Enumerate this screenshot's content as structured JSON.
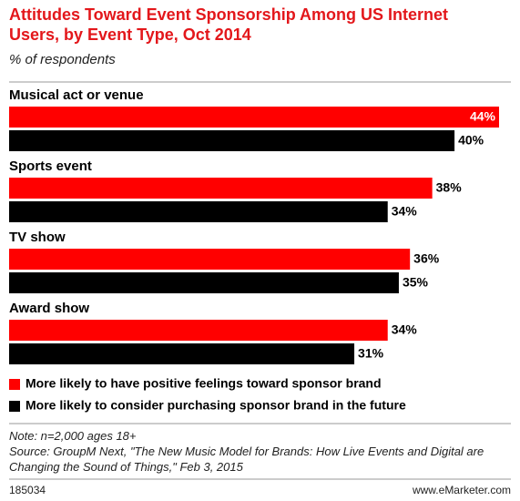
{
  "chart_data": {
    "type": "bar",
    "orientation": "horizontal",
    "title": "Attitudes Toward Event Sponsorship Among US Internet Users, by Event Type, Oct 2014",
    "subtitle": "% of respondents",
    "categories": [
      "Musical act or venue",
      "Sports event",
      "TV show",
      "Award show"
    ],
    "series": [
      {
        "name": "More likely to have positive feelings toward sponsor brand",
        "color": "#ff0000",
        "values": [
          44,
          38,
          36,
          34
        ],
        "value_labels": [
          "44%",
          "38%",
          "36%",
          "34%"
        ]
      },
      {
        "name": "More likely to consider purchasing sponsor brand in the future",
        "color": "#000000",
        "values": [
          40,
          34,
          35,
          31
        ],
        "value_labels": [
          "40%",
          "34%",
          "35%",
          "31%"
        ]
      }
    ],
    "note": "Note: n=2,000 ages 18+",
    "source": "Source: GroupM Next, \"The New Music Model for Brands: How Live Events and Digital are Changing the Sound of Things,\" Feb 3, 2015",
    "chart_id": "185034",
    "website": "www.eMarketer.com"
  }
}
